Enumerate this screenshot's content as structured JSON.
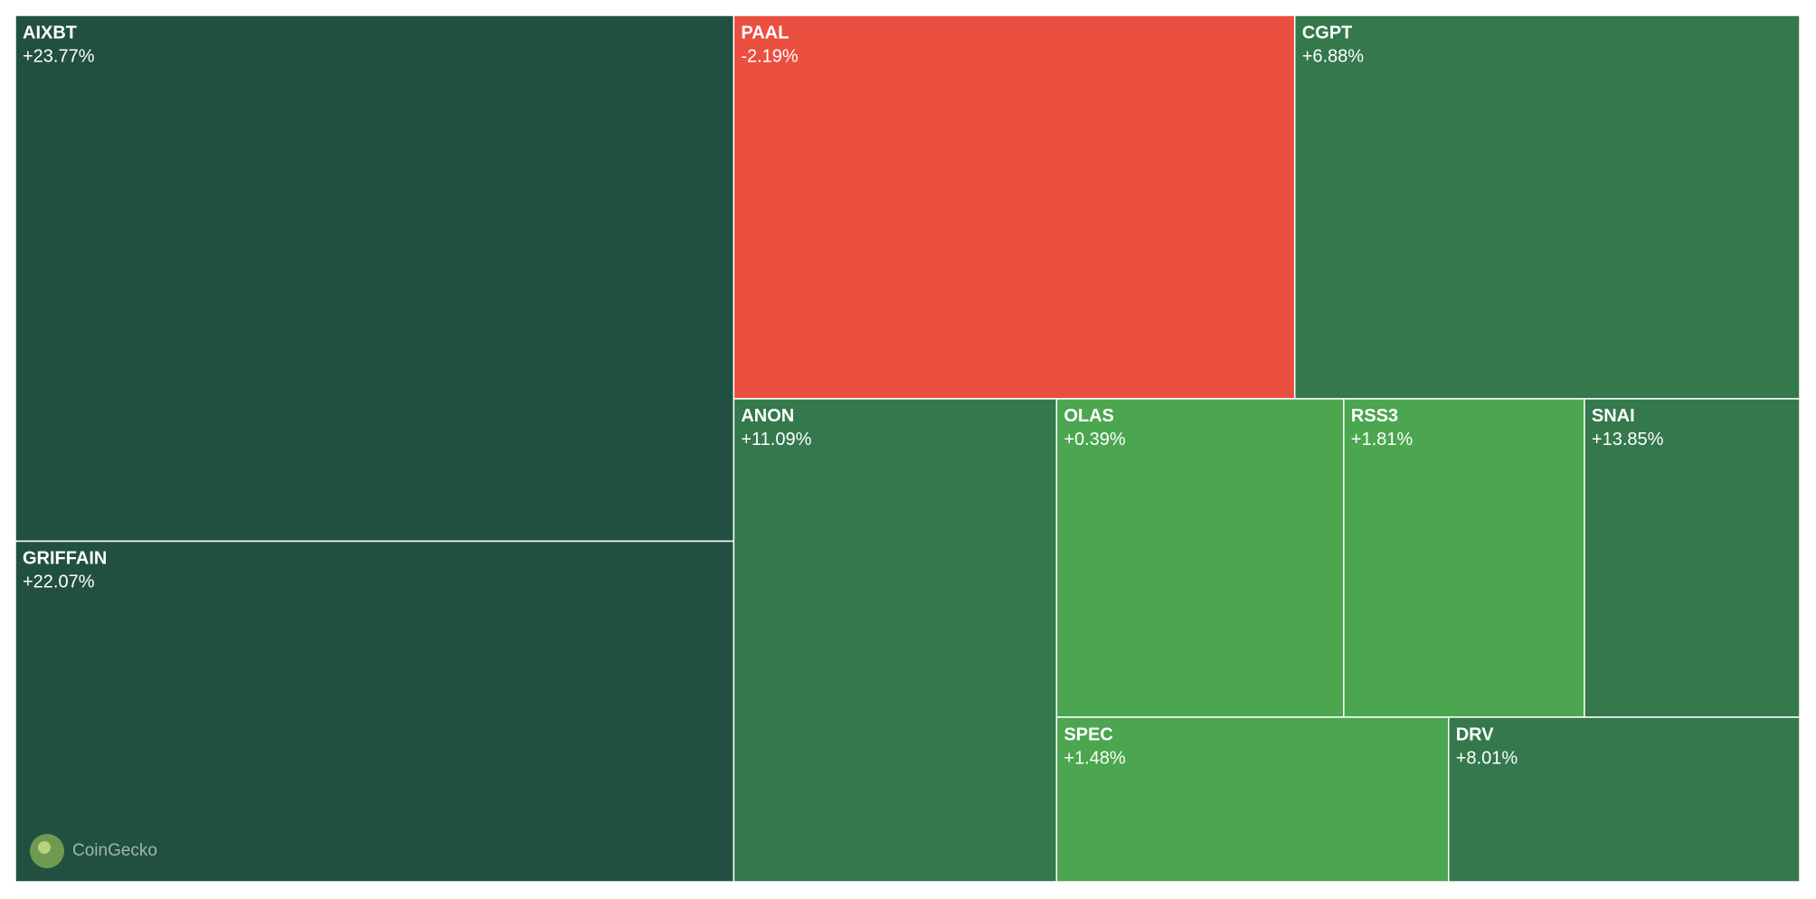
{
  "chart_data": {
    "type": "treemap",
    "names": [
      "AIXBT",
      "GRIFFAIN",
      "PAAL",
      "CGPT",
      "ANON",
      "OLAS",
      "RSS3",
      "SNAI",
      "SPEC",
      "DRV"
    ],
    "values": [
      281,
      182,
      160,
      144,
      116,
      68,
      57,
      51,
      48,
      43
    ],
    "changes": [
      "+23.77%",
      "+22.07%",
      "-2.19%",
      "+6.88%",
      "+11.09%",
      "+0.39%",
      "+1.81%",
      "+13.85%",
      "+1.48%",
      "+8.01%"
    ],
    "colors": [
      "#215040",
      "#215040",
      "#ea4f40",
      "#34784c",
      "#34784c",
      "#4ba64f",
      "#4ba64f",
      "#34784c",
      "#4ba64f",
      "#34784c"
    ],
    "watermark": "CoinGecko"
  }
}
